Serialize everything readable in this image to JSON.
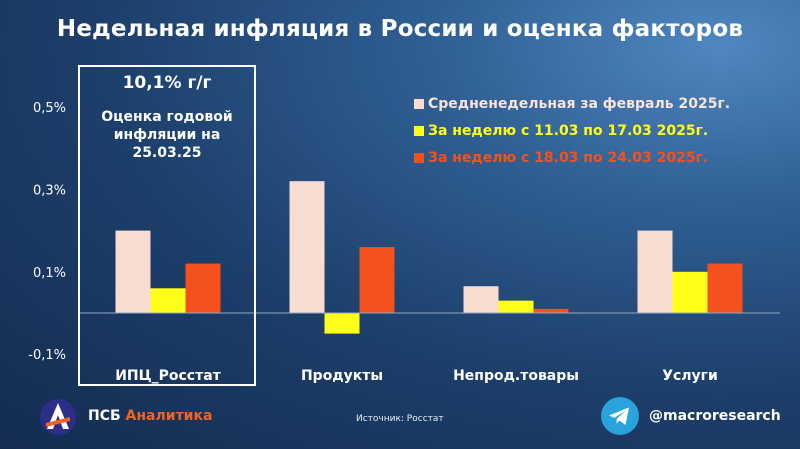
{
  "title": "Недельная инфляция в России и оценка факторов",
  "callout": {
    "value": "10,1% г/г",
    "text": "Оценка годовой инфляции на 25.03.25"
  },
  "legend": [
    {
      "label": "Средненедельная за февраль 2025г.",
      "color": "#f8dcd2"
    },
    {
      "label": "За неделю с 11.03 по 17.03 2025г.",
      "color": "#ffff1a"
    },
    {
      "label": "За неделю с 18.03 по 24.03 2025г.",
      "color": "#f4511e"
    }
  ],
  "chart_data": {
    "type": "bar",
    "categories": [
      "ИПЦ_Росстат",
      "Продукты",
      "Непрод.товары",
      "Услуги"
    ],
    "series": [
      {
        "name": "Средненедельная за февраль 2025г.",
        "color": "#f8dcd2",
        "values": [
          0.2,
          0.32,
          0.065,
          0.2
        ]
      },
      {
        "name": "За неделю с 11.03 по 17.03 2025г.",
        "color": "#ffff1a",
        "values": [
          0.06,
          -0.05,
          0.03,
          0.1
        ]
      },
      {
        "name": "За неделю с 18.03 по 24.03 2025г.",
        "color": "#f4511e",
        "values": [
          0.12,
          0.16,
          0.01,
          0.12
        ]
      }
    ],
    "yticks": [
      -0.1,
      0.1,
      0.3,
      0.5
    ],
    "ytick_labels": [
      "-0,1%",
      "0,1%",
      "0,3%",
      "0,5%"
    ],
    "ylim": [
      -0.12,
      0.52
    ],
    "grid": false,
    "legend_position": "top-right"
  },
  "footer": {
    "brand_main": "ПСБ",
    "brand_accent": "Аналитика",
    "source": "Источник: Росстат",
    "handle": "@macroresearch"
  },
  "icons": {
    "logo": "psb-logo-icon",
    "telegram": "telegram-icon"
  }
}
